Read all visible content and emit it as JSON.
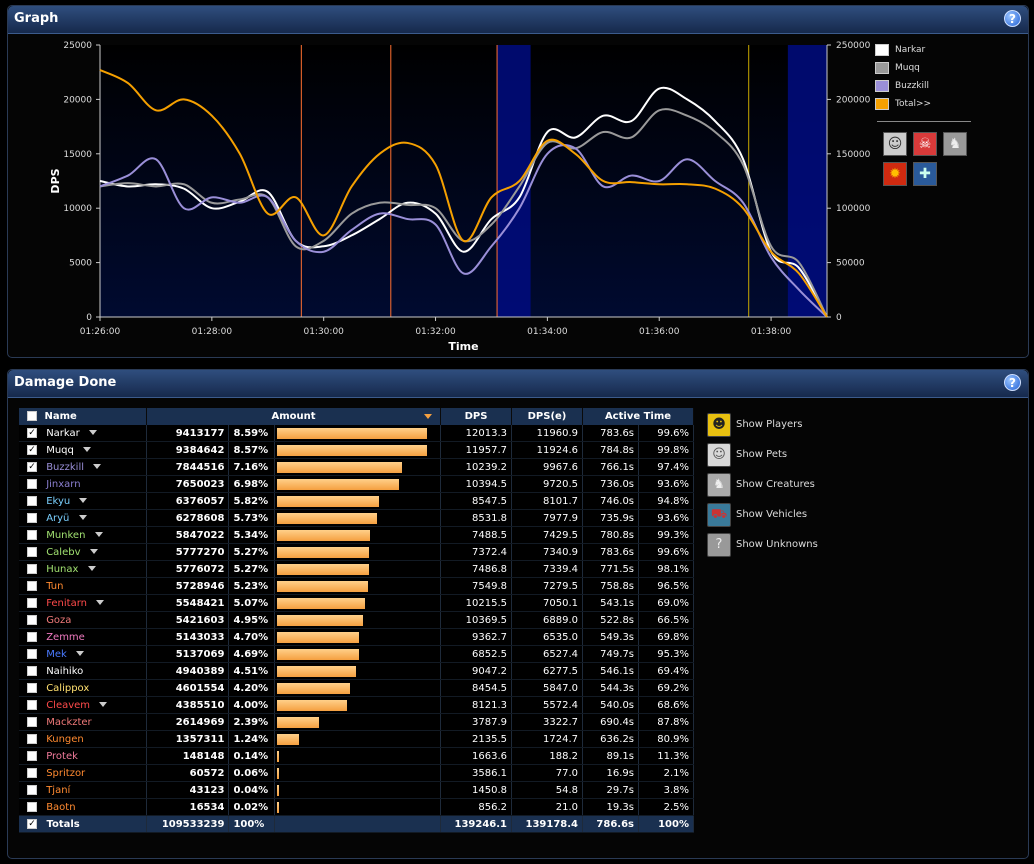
{
  "graph_panel": {
    "title": "Graph",
    "help": "?",
    "ylabel": "DPS",
    "xlabel": "Time",
    "x_ticks": [
      "01:26:00",
      "01:28:00",
      "01:30:00",
      "01:32:00",
      "01:34:00",
      "01:36:00",
      "01:38:00"
    ],
    "y_ticks_left": [
      "0",
      "5000",
      "10000",
      "15000",
      "20000",
      "25000"
    ],
    "y_ticks_right": [
      "0",
      "50000",
      "100000",
      "150000",
      "200000",
      "250000"
    ],
    "legend": [
      {
        "label": "Narkar",
        "color": "#ffffff"
      },
      {
        "label": "Muqq",
        "color": "#9a9a9a"
      },
      {
        "label": "Buzzkill",
        "color": "#9a8fd8"
      },
      {
        "label": "Total>>",
        "color": "#f5a000"
      }
    ]
  },
  "chart_data": {
    "type": "line",
    "x_axis": "time (minutes from 01:26:00)",
    "xlim": [
      0,
      13
    ],
    "ylim_left": [
      0,
      25000
    ],
    "ylim_right": [
      0,
      250000
    ],
    "vlines": [
      {
        "x": 3.6,
        "color": "#ff7030"
      },
      {
        "x": 5.2,
        "color": "#ff7030"
      },
      {
        "x": 7.1,
        "color": "#ff7030"
      },
      {
        "x": 11.6,
        "color": "#c8a800"
      }
    ],
    "shaded": [
      {
        "x0": 7.1,
        "x1": 7.7
      },
      {
        "x0": 12.3,
        "x1": 13.0
      }
    ],
    "series": [
      {
        "name": "Narkar",
        "color": "#ffffff",
        "axis": "left",
        "x": [
          0,
          0.5,
          1,
          1.5,
          2,
          2.5,
          3,
          3.5,
          4,
          4.5,
          5,
          5.5,
          6,
          6.5,
          7,
          7.5,
          8,
          8.5,
          9,
          9.5,
          10,
          10.5,
          11,
          11.5,
          12,
          12.5,
          13
        ],
        "y": [
          12500,
          12000,
          12200,
          11800,
          10000,
          10600,
          11500,
          7000,
          6500,
          7500,
          9000,
          10500,
          9500,
          6000,
          9000,
          11000,
          17000,
          16500,
          18500,
          18000,
          21000,
          20000,
          18000,
          14500,
          6000,
          4500,
          0
        ]
      },
      {
        "name": "Muqq",
        "color": "#9a9a9a",
        "axis": "left",
        "x": [
          0,
          0.5,
          1,
          1.5,
          2,
          2.5,
          3,
          3.5,
          4,
          4.5,
          5,
          5.5,
          6,
          6.5,
          7,
          7.5,
          8,
          8.5,
          9,
          9.5,
          10,
          10.5,
          11,
          11.5,
          12,
          12.5,
          13
        ],
        "y": [
          12000,
          12300,
          12000,
          12200,
          10500,
          10800,
          11000,
          6500,
          7000,
          9500,
          10500,
          10300,
          10000,
          7000,
          8500,
          12000,
          16000,
          15500,
          17000,
          16500,
          19000,
          18500,
          17000,
          14000,
          6500,
          5000,
          0
        ]
      },
      {
        "name": "Buzzkill",
        "color": "#9a8fd8",
        "axis": "left",
        "x": [
          0,
          0.5,
          1,
          1.5,
          2,
          2.5,
          3,
          3.5,
          4,
          4.5,
          5,
          5.5,
          6,
          6.5,
          7,
          7.5,
          8,
          8.5,
          9,
          9.5,
          10,
          10.5,
          11,
          11.5,
          12,
          12.5,
          13
        ],
        "y": [
          12000,
          13000,
          14500,
          10000,
          11000,
          10500,
          11000,
          7000,
          6000,
          8000,
          9500,
          9000,
          8500,
          4000,
          6500,
          10000,
          15000,
          15500,
          12000,
          13000,
          12500,
          14500,
          12500,
          10500,
          5500,
          2500,
          0
        ]
      },
      {
        "name": "Total>>",
        "color": "#f5a000",
        "axis": "right",
        "x": [
          0,
          0.5,
          1,
          1.5,
          2,
          2.5,
          3,
          3.5,
          4,
          4.5,
          5,
          5.5,
          6,
          6.5,
          7,
          7.5,
          8,
          8.5,
          9,
          9.5,
          10,
          10.5,
          11,
          11.5,
          12,
          12.5,
          13
        ],
        "y": [
          227000,
          215000,
          190000,
          200000,
          185000,
          150000,
          95000,
          110000,
          75000,
          120000,
          150000,
          160000,
          140000,
          70000,
          110000,
          125000,
          162000,
          150000,
          125000,
          124000,
          122000,
          122000,
          118000,
          100000,
          60000,
          40000,
          0
        ]
      }
    ]
  },
  "damage_panel": {
    "title": "Damage Done",
    "help": "?",
    "columns": {
      "name": "Name",
      "amount": "Amount",
      "dps": "DPS",
      "dpse": "DPS(e)",
      "active": "Active Time"
    },
    "rows": [
      {
        "name": "Narkar",
        "color": "#ffffff",
        "checked": true,
        "dropdown": true,
        "amount": "9413177",
        "pct": "8.59%",
        "fill": 1.0,
        "dps": "12013.3",
        "dpse": "11960.9",
        "time": "783.6s",
        "tpct": "99.6%"
      },
      {
        "name": "Muqq",
        "color": "#ffffff",
        "checked": true,
        "dropdown": true,
        "amount": "9384642",
        "pct": "8.57%",
        "fill": 0.997,
        "dps": "11957.7",
        "dpse": "11924.6",
        "time": "784.8s",
        "tpct": "99.8%"
      },
      {
        "name": "Buzzkill",
        "color": "#9a8fd8",
        "checked": true,
        "dropdown": true,
        "amount": "7844516",
        "pct": "7.16%",
        "fill": 0.833,
        "dps": "10239.2",
        "dpse": "9967.6",
        "time": "766.1s",
        "tpct": "97.4%"
      },
      {
        "name": "Jinxarn",
        "color": "#8a7fd0",
        "checked": false,
        "dropdown": false,
        "amount": "7650023",
        "pct": "6.98%",
        "fill": 0.813,
        "dps": "10394.5",
        "dpse": "9720.5",
        "time": "736.0s",
        "tpct": "93.6%"
      },
      {
        "name": "Ekyu",
        "color": "#7ad0ff",
        "checked": false,
        "dropdown": true,
        "amount": "6376057",
        "pct": "5.82%",
        "fill": 0.677,
        "dps": "8547.5",
        "dpse": "8101.7",
        "time": "746.0s",
        "tpct": "94.8%"
      },
      {
        "name": "Aryü",
        "color": "#7ad0ff",
        "checked": false,
        "dropdown": true,
        "amount": "6278608",
        "pct": "5.73%",
        "fill": 0.667,
        "dps": "8531.8",
        "dpse": "7977.9",
        "time": "735.9s",
        "tpct": "93.6%"
      },
      {
        "name": "Munken",
        "color": "#a0e070",
        "checked": false,
        "dropdown": true,
        "amount": "5847022",
        "pct": "5.34%",
        "fill": 0.621,
        "dps": "7488.5",
        "dpse": "7429.5",
        "time": "780.8s",
        "tpct": "99.3%"
      },
      {
        "name": "Calebv",
        "color": "#a0e070",
        "checked": false,
        "dropdown": true,
        "amount": "5777270",
        "pct": "5.27%",
        "fill": 0.614,
        "dps": "7372.4",
        "dpse": "7340.9",
        "time": "783.6s",
        "tpct": "99.6%"
      },
      {
        "name": "Hunax",
        "color": "#a0e070",
        "checked": false,
        "dropdown": true,
        "amount": "5776072",
        "pct": "5.27%",
        "fill": 0.614,
        "dps": "7486.8",
        "dpse": "7339.4",
        "time": "771.5s",
        "tpct": "98.1%"
      },
      {
        "name": "Tun",
        "color": "#ff8a30",
        "checked": false,
        "dropdown": false,
        "amount": "5728946",
        "pct": "5.23%",
        "fill": 0.609,
        "dps": "7549.8",
        "dpse": "7279.5",
        "time": "758.8s",
        "tpct": "96.5%"
      },
      {
        "name": "Fenitarn",
        "color": "#ff4a4a",
        "checked": false,
        "dropdown": true,
        "amount": "5548421",
        "pct": "5.07%",
        "fill": 0.589,
        "dps": "10215.5",
        "dpse": "7050.1",
        "time": "543.1s",
        "tpct": "69.0%"
      },
      {
        "name": "Goza",
        "color": "#f07a7a",
        "checked": false,
        "dropdown": false,
        "amount": "5421603",
        "pct": "4.95%",
        "fill": 0.576,
        "dps": "10369.5",
        "dpse": "6889.0",
        "time": "522.8s",
        "tpct": "66.5%"
      },
      {
        "name": "Zemme",
        "color": "#f07ac0",
        "checked": false,
        "dropdown": false,
        "amount": "5143033",
        "pct": "4.70%",
        "fill": 0.546,
        "dps": "9362.7",
        "dpse": "6535.0",
        "time": "549.3s",
        "tpct": "69.8%"
      },
      {
        "name": "Mek",
        "color": "#4a7aff",
        "checked": false,
        "dropdown": true,
        "amount": "5137069",
        "pct": "4.69%",
        "fill": 0.546,
        "dps": "6852.5",
        "dpse": "6527.4",
        "time": "749.7s",
        "tpct": "95.3%"
      },
      {
        "name": "Naihiko",
        "color": "#ffffff",
        "checked": false,
        "dropdown": false,
        "amount": "4940389",
        "pct": "4.51%",
        "fill": 0.525,
        "dps": "9047.2",
        "dpse": "6277.5",
        "time": "546.1s",
        "tpct": "69.4%"
      },
      {
        "name": "Calippox",
        "color": "#ffe070",
        "checked": false,
        "dropdown": false,
        "amount": "4601554",
        "pct": "4.20%",
        "fill": 0.489,
        "dps": "8454.5",
        "dpse": "5847.0",
        "time": "544.3s",
        "tpct": "69.2%"
      },
      {
        "name": "Cleavem",
        "color": "#ff4a4a",
        "checked": false,
        "dropdown": true,
        "amount": "4385510",
        "pct": "4.00%",
        "fill": 0.466,
        "dps": "8121.3",
        "dpse": "5572.4",
        "time": "540.0s",
        "tpct": "68.6%"
      },
      {
        "name": "Mackzter",
        "color": "#f07a7a",
        "checked": false,
        "dropdown": false,
        "amount": "2614969",
        "pct": "2.39%",
        "fill": 0.278,
        "dps": "3787.9",
        "dpse": "3322.7",
        "time": "690.4s",
        "tpct": "87.8%"
      },
      {
        "name": "Kungen",
        "color": "#ff8a30",
        "checked": false,
        "dropdown": false,
        "amount": "1357311",
        "pct": "1.24%",
        "fill": 0.144,
        "dps": "2135.5",
        "dpse": "1724.7",
        "time": "636.2s",
        "tpct": "80.9%"
      },
      {
        "name": "Protek",
        "color": "#f07a9a",
        "checked": false,
        "dropdown": false,
        "amount": "148148",
        "pct": "0.14%",
        "fill": 0.016,
        "dps": "1663.6",
        "dpse": "188.2",
        "time": "89.1s",
        "tpct": "11.3%"
      },
      {
        "name": "Spritzor",
        "color": "#ff8a30",
        "checked": false,
        "dropdown": false,
        "amount": "60572",
        "pct": "0.06%",
        "fill": 0.007,
        "dps": "3586.1",
        "dpse": "77.0",
        "time": "16.9s",
        "tpct": "2.1%"
      },
      {
        "name": "Tjaní",
        "color": "#ff8a30",
        "checked": false,
        "dropdown": false,
        "amount": "43123",
        "pct": "0.04%",
        "fill": 0.006,
        "dps": "1450.8",
        "dpse": "54.8",
        "time": "29.7s",
        "tpct": "3.8%"
      },
      {
        "name": "Baotn",
        "color": "#ff8a30",
        "checked": false,
        "dropdown": false,
        "amount": "16534",
        "pct": "0.02%",
        "fill": 0.005,
        "dps": "856.2",
        "dpse": "21.0",
        "time": "19.3s",
        "tpct": "2.5%"
      }
    ],
    "totals": {
      "name": "Totals",
      "amount": "109533239",
      "pct": "100%",
      "dps": "139246.1",
      "dpse": "139178.4",
      "time": "786.6s",
      "tpct": "100%"
    },
    "show_options": [
      {
        "label": "Show Players",
        "icon": "player-icon"
      },
      {
        "label": "Show Pets",
        "icon": "pet-icon"
      },
      {
        "label": "Show Creatures",
        "icon": "creature-icon"
      },
      {
        "label": "Show Vehicles",
        "icon": "vehicle-icon"
      },
      {
        "label": "Show Unknowns",
        "icon": "unknown-icon"
      }
    ]
  }
}
